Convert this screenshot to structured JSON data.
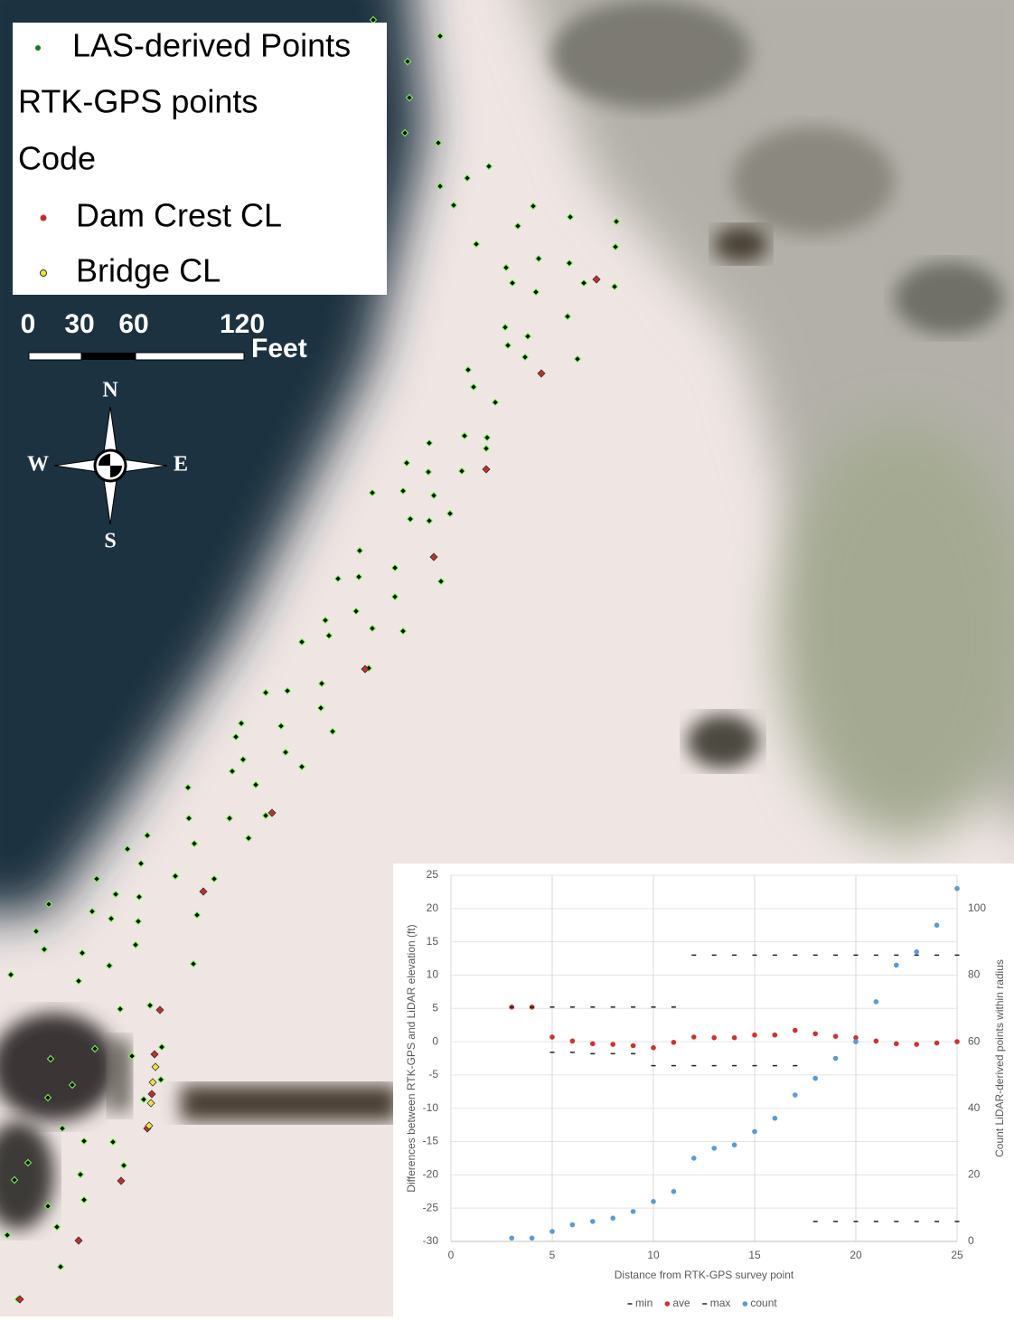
{
  "map": {
    "legend": {
      "items": [
        "LAS-derived Points",
        "RTK-GPS points",
        "Code",
        "Dam Crest CL",
        "Bridge CL"
      ]
    },
    "scale_bar": {
      "labels": [
        "0",
        "30",
        "60",
        "120"
      ],
      "unit": "Feet"
    },
    "compass": {
      "north": "N",
      "south": "S",
      "west": "W",
      "east": "E"
    }
  },
  "chart_data": {
    "type": "scatter",
    "x_label": "Distance from RTK-GPS survey point",
    "y_label": "Differences between RTK-GPS and LiDAR elevation (ft)",
    "y2_label": "Count LiDAR-derived points within radius",
    "x": [
      3,
      4,
      5,
      6,
      7,
      8,
      9,
      10,
      11,
      12,
      13,
      14,
      15,
      16,
      17,
      18,
      19,
      20,
      21,
      22,
      23,
      24,
      25
    ],
    "series": [
      {
        "name": "min",
        "color": "#222222",
        "marker": "dash",
        "values": [
          5.2,
          5.2,
          -1.6,
          -1.6,
          -1.8,
          -1.8,
          -1.8,
          -3.6,
          -3.6,
          -3.6,
          -3.6,
          -3.6,
          -3.6,
          -3.6,
          -3.6,
          -27,
          -27,
          -27,
          -27,
          -27,
          -27,
          -27,
          -27
        ]
      },
      {
        "name": "ave",
        "color": "#d0312d",
        "marker": "circle",
        "values": [
          5.2,
          5.2,
          0.7,
          0.1,
          -0.3,
          -0.4,
          -0.6,
          -0.9,
          -0.1,
          0.7,
          0.6,
          0.6,
          1.0,
          1.0,
          1.7,
          1.2,
          0.8,
          0.6,
          0.1,
          -0.3,
          -0.4,
          -0.2,
          0
        ]
      },
      {
        "name": "max",
        "color": "#222222",
        "marker": "dash",
        "values": [
          5.2,
          5.2,
          5.2,
          5.2,
          5.2,
          5.2,
          5.2,
          5.2,
          5.2,
          13,
          13,
          13,
          13,
          13,
          13,
          13,
          13,
          13,
          13,
          13,
          13,
          13,
          13
        ]
      },
      {
        "name": "count",
        "color": "#5b9bd5",
        "marker": "circle",
        "axis": "y2",
        "values": [
          1,
          1,
          3,
          5,
          6,
          7,
          9,
          12,
          15,
          25,
          28,
          29,
          33,
          37,
          44,
          49,
          55,
          60,
          72,
          83,
          87,
          95,
          106
        ]
      }
    ],
    "xlim": [
      0,
      25
    ],
    "xticks": [
      0,
      5,
      10,
      15,
      20,
      25
    ],
    "ylim": [
      -30,
      25
    ],
    "yticks": [
      -30,
      -25,
      -20,
      -15,
      -10,
      -5,
      0,
      5,
      10,
      15,
      20,
      25
    ],
    "y2lim": [
      0,
      110
    ],
    "y2ticks": [
      0,
      20,
      40,
      60,
      80,
      100
    ],
    "grid": true,
    "legend": "bottom"
  }
}
